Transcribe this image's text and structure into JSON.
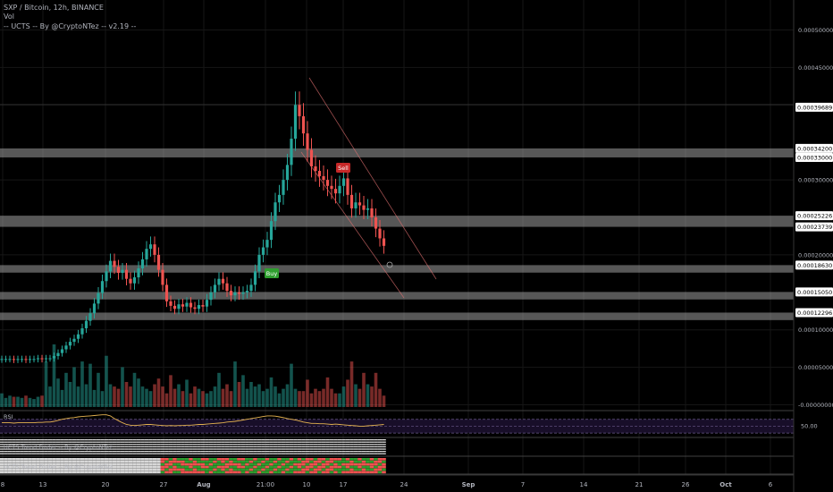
{
  "header": {
    "title": "SXP / Bitcoin, 12h, BINANCE",
    "vol_label": "Vol",
    "indicator_label": "-- UCTS -- By @CryptoNTez -- v2.19 --"
  },
  "colors": {
    "up": "#26a69a",
    "down": "#ef5350",
    "zone": "#9e9e9e",
    "rsi_line": "#e6b450",
    "rsi_band": "#1b0f2e",
    "buy": "#2e9e2e",
    "sell": "#c62828"
  },
  "chart_data": [
    {
      "type": "candlestick",
      "title": "SXP / Bitcoin, 12h, BINANCE",
      "y_axis": {
        "ticks": [
          "0.00050000",
          "0.00045000",
          "0.00030000",
          "0.00020000",
          "0.00010000",
          "0.00005000",
          "-0.00000000"
        ],
        "range": [
          -3e-06,
          0.00054
        ]
      },
      "x_axis": {
        "ticks": [
          "8",
          "13",
          "20",
          "27",
          "Aug",
          "21:00",
          "10",
          "17",
          "24",
          "Sep",
          "7",
          "14",
          "21",
          "26",
          "Oct",
          "6"
        ]
      },
      "price_labels": [
        "0.00039689",
        "0.00034200",
        "0.00033000",
        "0.00025226",
        "0.00023739",
        "0.00018630",
        "0.00015050",
        "0.00012296"
      ],
      "zones": [
        [
          0.000342,
          0.00033
        ],
        [
          0.00025226,
          0.00023739
        ],
        [
          0.0001863,
          0.0001763
        ],
        [
          0.0001505,
          0.0001405
        ],
        [
          0.00012296,
          0.00011296
        ]
      ],
      "signals": [
        {
          "label": "Buy",
          "type": "buy"
        },
        {
          "label": "Sell",
          "type": "sell"
        }
      ],
      "closes": [
        6.1e-05,
        6.1e-05,
        6.1e-05,
        6e-05,
        6.1e-05,
        6.1e-05,
        6e-05,
        6.1e-05,
        6.1e-05,
        6.2e-05,
        6.1e-05,
        6.2e-05,
        6.2e-05,
        6.5e-05,
        6.9e-05,
        7.4e-05,
        7.9e-05,
        8.4e-05,
        8.8e-05,
        9.4e-05,
        0.000102,
        0.000112,
        0.000122,
        0.000135,
        0.000149,
        0.000165,
        0.000178,
        0.000192,
        0.000184,
        0.000176,
        0.00018,
        0.000168,
        0.000162,
        0.00017,
        0.000182,
        0.000194,
        0.000208,
        0.000214,
        0.0002,
        0.00018,
        0.00016,
        0.000138,
        0.000132,
        0.000128,
        0.000134,
        0.000131,
        0.000136,
        0.00013,
        0.000128,
        0.000133,
        0.000131,
        0.00014,
        0.00015,
        0.00016,
        0.000168,
        0.000162,
        0.000152,
        0.000146,
        0.00015,
        0.000148,
        0.00015,
        0.000152,
        0.00016,
        0.000178,
        0.0002,
        0.00021,
        0.00022,
        0.000245,
        0.00027,
        0.00028,
        0.0003,
        0.00032,
        0.000355,
        0.0004,
        0.000385,
        0.000362,
        0.00034,
        0.000318,
        0.000312,
        0.000305,
        0.0003,
        0.000292,
        0.000288,
        0.000282,
        0.000292,
        0.000302,
        0.00028,
        0.000262,
        0.00027,
        0.000266,
        0.00026,
        0.000262,
        0.00025,
        0.000235,
        0.000222,
        0.000212
      ],
      "volumes": [
        12,
        8,
        10,
        9,
        9,
        8,
        10,
        8,
        7,
        9,
        10,
        40,
        18,
        55,
        25,
        15,
        30,
        22,
        35,
        18,
        40,
        20,
        38,
        15,
        30,
        14,
        45,
        20,
        18,
        16,
        35,
        22,
        18,
        30,
        25,
        18,
        16,
        14,
        20,
        25,
        18,
        12,
        28,
        16,
        20,
        14,
        24,
        12,
        18,
        16,
        14,
        12,
        14,
        18,
        30,
        16,
        20,
        14,
        40,
        22,
        28,
        16,
        22,
        18,
        20,
        14,
        16,
        26,
        18,
        12,
        16,
        20,
        38,
        16,
        14,
        14,
        24,
        12,
        16,
        14,
        16,
        26,
        16,
        12,
        12,
        18,
        24,
        40,
        20,
        16,
        30,
        20,
        18,
        30,
        16,
        10
      ],
      "rsi": [
        60,
        60,
        60,
        59,
        60,
        60,
        60,
        60,
        60,
        61,
        61,
        62,
        62,
        64,
        67,
        70,
        72,
        74,
        75,
        77,
        78,
        79,
        80,
        81,
        82,
        83,
        83,
        80,
        72,
        66,
        60,
        55,
        53,
        52,
        53,
        54,
        55,
        55,
        54,
        53,
        52,
        51,
        52,
        51,
        52,
        52,
        53,
        53,
        54,
        55,
        55,
        56,
        57,
        58,
        59,
        60,
        62,
        63,
        64,
        66,
        68,
        70,
        72,
        74,
        76,
        78,
        80,
        80,
        79,
        77,
        75,
        72,
        70,
        68,
        65,
        62,
        60,
        58,
        58,
        57,
        57,
        56,
        55,
        56,
        55,
        54,
        53,
        52,
        51,
        50,
        50,
        51,
        52,
        53,
        54,
        55
      ],
      "rsi_levels": [
        70,
        50,
        30
      ],
      "rsi_label": "RSI",
      "rsi_level_label": "50.00",
      "trend_finder_1": "UCTS Trend Finder -- By @CryptoNTez",
      "trend_finder_2": "UCTS Trend Finder -- By @CryptoNTez"
    }
  ]
}
